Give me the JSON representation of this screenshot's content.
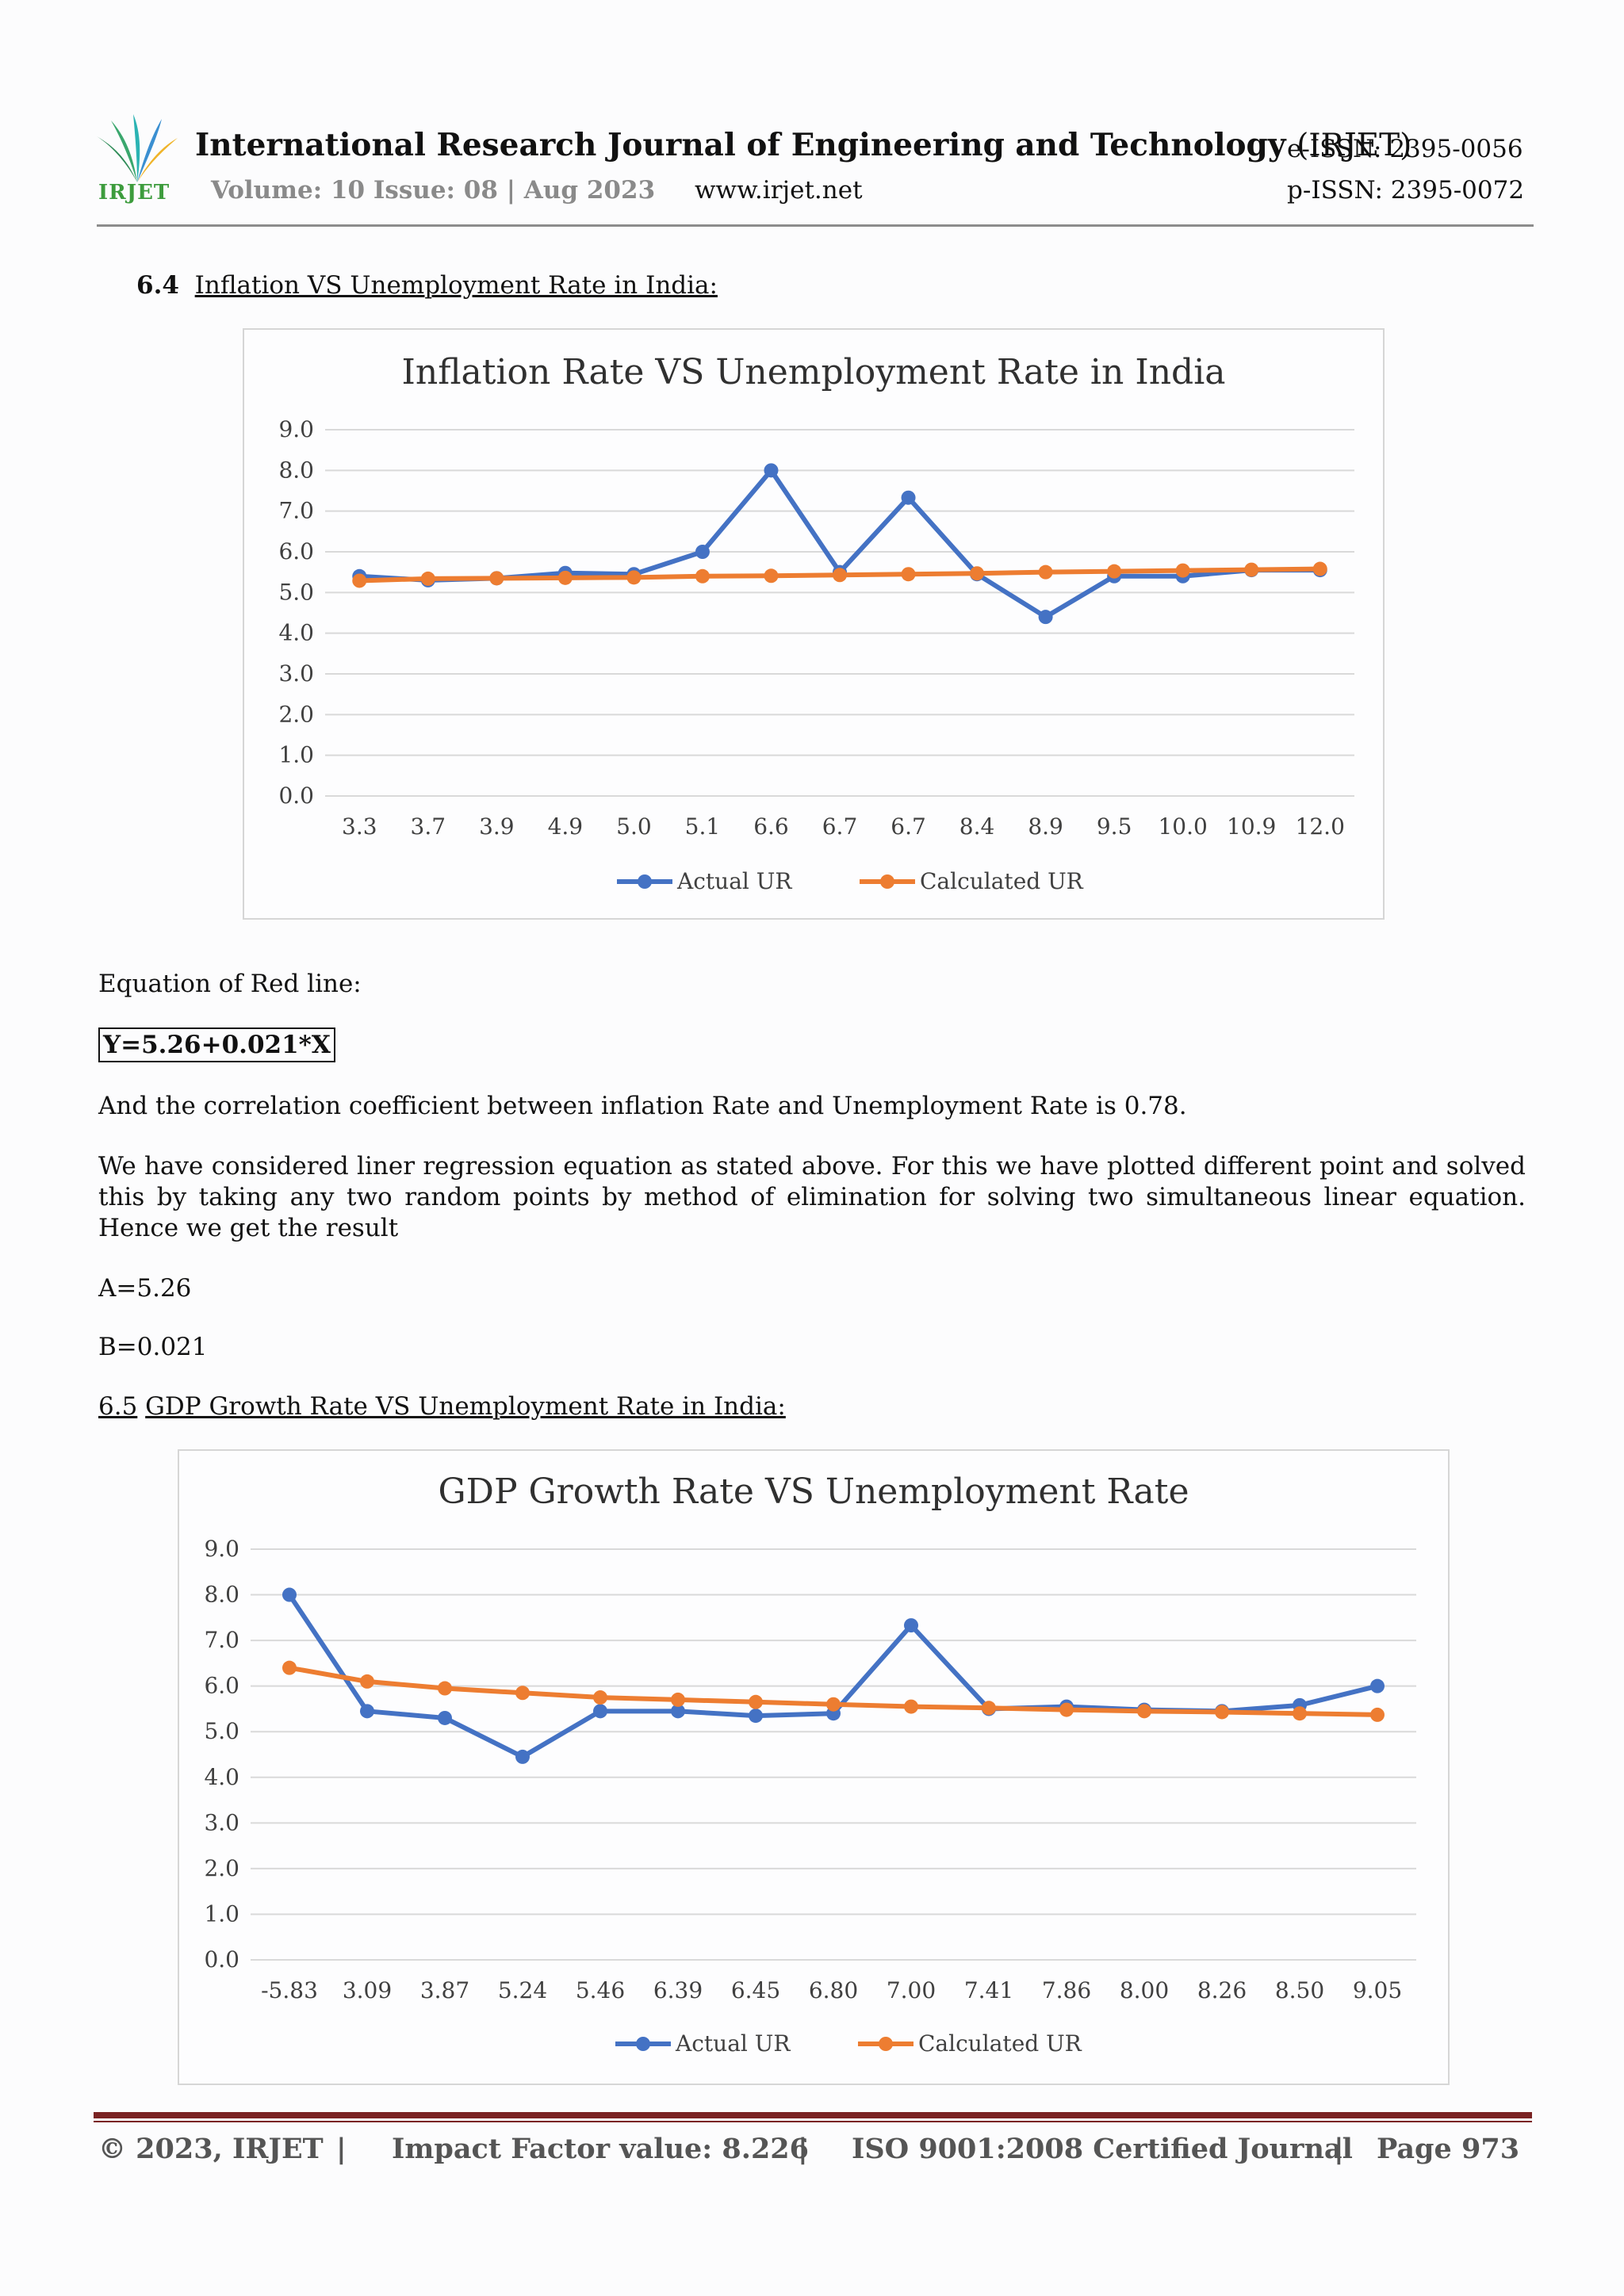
{
  "header": {
    "logo_text": "IRJET",
    "journal_title": "International Research Journal of Engineering and Technology",
    "journal_abbr": "(IRJET)",
    "volume": "Volume: 10 Issue: 08 | Aug 2023",
    "website": "www.irjet.net",
    "e_issn": "e-ISSN: 2395-0056",
    "p_issn": "p-ISSN: 2395-0072"
  },
  "section_64": {
    "number": "6.4",
    "title": "Inflation VS Unemployment Rate in India:"
  },
  "section_65": {
    "number": "6.5",
    "title": "GDP Growth Rate VS Unemployment Rate in India:"
  },
  "body": {
    "equation_label": "Equation of Red line:",
    "equation": "Y=5.26+0.021*X",
    "correlation": "And the correlation coefficient between inflation Rate and Unemployment Rate is 0.78.",
    "method": "We have considered liner regression equation as stated above. For this we have plotted different point and solved this by taking any two random points by method of elimination for solving two simultaneous linear equation. Hence we get the result",
    "a_value": "A=5.26",
    "b_value": "B=0.021"
  },
  "chart_data": [
    {
      "type": "line",
      "title": "Inflation Rate VS Unemployment Rate in India",
      "xlabel": "",
      "ylabel": "",
      "categories": [
        "3.3",
        "3.7",
        "3.9",
        "4.9",
        "5.0",
        "5.1",
        "6.6",
        "6.7",
        "6.7",
        "8.4",
        "8.9",
        "9.5",
        "10.0",
        "10.9",
        "12.0"
      ],
      "yticks": [
        "0.0",
        "1.0",
        "2.0",
        "3.0",
        "4.0",
        "5.0",
        "6.0",
        "7.0",
        "8.0",
        "9.0"
      ],
      "ylim": [
        0,
        9
      ],
      "grid": true,
      "legend_position": "bottom",
      "series": [
        {
          "name": "Actual UR",
          "color": "#4472c4",
          "values": [
            5.4,
            5.3,
            5.35,
            5.48,
            5.45,
            6.0,
            8.0,
            5.5,
            7.33,
            5.45,
            4.4,
            5.4,
            5.4,
            5.55,
            5.55
          ]
        },
        {
          "name": "Calculated UR",
          "color": "#ed7d31",
          "values": [
            5.29,
            5.34,
            5.35,
            5.36,
            5.37,
            5.4,
            5.41,
            5.43,
            5.45,
            5.47,
            5.5,
            5.52,
            5.54,
            5.56,
            5.58
          ]
        }
      ]
    },
    {
      "type": "line",
      "title": "GDP Growth Rate VS Unemployment Rate",
      "xlabel": "",
      "ylabel": "",
      "categories": [
        "-5.83",
        "3.09",
        "3.87",
        "5.24",
        "5.46",
        "6.39",
        "6.45",
        "6.80",
        "7.00",
        "7.41",
        "7.86",
        "8.00",
        "8.26",
        "8.50",
        "9.05"
      ],
      "yticks": [
        "0.0",
        "1.0",
        "2.0",
        "3.0",
        "4.0",
        "5.0",
        "6.0",
        "7.0",
        "8.0",
        "9.0"
      ],
      "ylim": [
        0,
        9
      ],
      "grid": true,
      "legend_position": "bottom",
      "series": [
        {
          "name": "Actual UR",
          "color": "#4472c4",
          "values": [
            8.0,
            5.45,
            5.3,
            4.45,
            5.45,
            5.45,
            5.35,
            5.4,
            7.33,
            5.5,
            5.55,
            5.48,
            5.45,
            5.58,
            6.0
          ]
        },
        {
          "name": "Calculated UR",
          "color": "#ed7d31",
          "values": [
            6.4,
            6.1,
            5.95,
            5.85,
            5.75,
            5.7,
            5.65,
            5.6,
            5.55,
            5.52,
            5.48,
            5.45,
            5.43,
            5.4,
            5.37
          ]
        }
      ]
    }
  ],
  "footer": {
    "copyright": "© 2023, IRJET",
    "impact": "Impact Factor value: 8.226",
    "iso": "ISO 9001:2008 Certified Journal",
    "page": "Page 973",
    "separator": "|"
  }
}
